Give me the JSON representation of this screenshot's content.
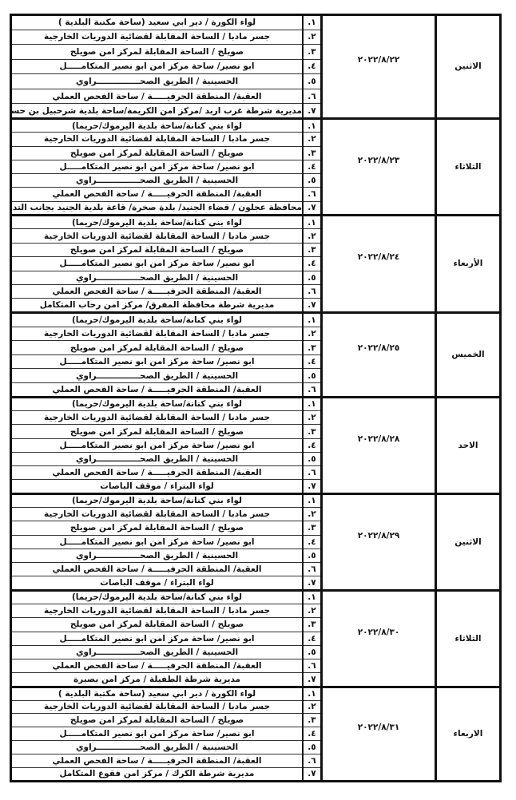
{
  "schedule": [
    {
      "day": "الاثنين",
      "date": "٢٠٢٢/٨/٢٢",
      "locations": [
        "لواء الكورة / دير ابي سعيد (ساحة مكتبة البلدية )",
        "جسر مادبا / الساحة المقابلة لقضائية الدوريات الخارجية",
        "صويلح / الساحة المقابلة لمركز امن صويلح",
        "ابو نصير/ ساحة مركز امن ابو نصير المتكامـــــل",
        "الحسينية / الطريق الصحـــــــــــــــراوي",
        "العقبة/ المنطقة الحرفيـــــة / ساحة الفحص العملي",
        "مديرية شرطة غرب اربد /مركز امن الكريمة/ساحة بلدية شرحبيل بن حسنة"
      ]
    },
    {
      "day": "الثلاثاء",
      "date": "٢٠٢٢/٨/٢٣",
      "locations": [
        "لواء بني كنانة/ساحة بلدية اليرموك/حريما)",
        "جسر مادبا / الساحة المقابلة لقضائية الدوريات الخارجية",
        "صويلح / الساحة المقابلة لمركز امن صويلح",
        "ابو نصير/ ساحة مركز امن ابو نصير المتكامـــــل",
        "الحسينية / الطريق الصحـــــــــــــــراوي",
        "العقبة/ المنطقة الحرفيـــــة / ساحة الفحص العملي",
        "محافظة عجلون / قضاء الجنيد/ بلدة صخرة/ قاعة بلدية الجنيد بجانب التدريب المهني"
      ]
    },
    {
      "day": "الأربعاء",
      "date": "٢٠٢٢/٨/٢٤",
      "locations": [
        "لواء بني كنانة/ساحة بلدية اليرموك/حريما)",
        "جسر مادبا / الساحة المقابلة لقضائية الدوريات الخارجية",
        "صويلح / الساحة المقابلة لمركز امن صويلح",
        "ابو نصير/ ساحة مركز امن ابو نصير المتكامـــــل",
        "الحسينية / الطريق الصحـــــــــــــــراوي",
        "العقبة/ المنطقة الحرفيـــــة / ساحة الفحص العملي",
        "مديرية شرطة محافظة المفرق/ مركز امن رحاب المتكامل"
      ]
    },
    {
      "day": "الخميس",
      "date": "٢٠٢٢/٨/٢٥",
      "locations": [
        "لواء بني كنانة/ساحة بلدية اليرموك/حريما)",
        "جسر مادبا / الساحة المقابلة لقضائية الدوريات الخارجية",
        "صويلح / الساحة المقابلة لمركز امن صويلح",
        "ابو نصير/ ساحة مركز امن ابو نصير المتكامـــــل",
        "الحسينية / الطريق الصحـــــــــــــــراوي",
        "العقبة/ المنطقة الحرفيـــــة / ساحة الفحص العملي"
      ]
    },
    {
      "day": "الاحد",
      "date": "٢٠٢٢/٨/٢٨",
      "locations": [
        "لواء بني كنانة/ساحة بلدية اليرموك/حريما)",
        "جسر مادبا / الساحة المقابلة لقضائية الدوريات الخارجية",
        "صويلح / الساحة المقابلة لمركز امن صويلح",
        "ابو نصير/ ساحة مركز امن ابو نصير المتكامـــــل",
        "الحسينية / الطريق الصحـــــــــــــــراوي",
        "العقبة/ المنطقة الحرفيـــــة / ساحة الفحص العملي",
        "لواء البتراء / موقف الباصات"
      ]
    },
    {
      "day": "الاثنين",
      "date": "٢٠٢٢/٨/٢٩",
      "locations": [
        "لواء بني كنانة/ساحة بلدية اليرموك/حريما)",
        "جسر مادبا / الساحة المقابلة لقضائية الدوريات الخارجية",
        "صويلح / الساحة المقابلة لمركز امن صويلح",
        "ابو نصير/ ساحة مركز امن ابو نصير المتكامـــــل",
        "الحسينية / الطريق الصحـــــــــــــــراوي",
        "العقبة/ المنطقة الحرفيـــــة / ساحة الفحص العملي",
        "لواء البتراء / موقف الباصات"
      ]
    },
    {
      "day": "الثلاثاء",
      "date": "٢٠٢٢/٨/٣٠",
      "locations": [
        "لواء بني كنانة/ساحة بلدية اليرموك/حريما)",
        "جسر مادبا / الساحة المقابلة لقضائية الدوريات الخارجية",
        "صويلح / الساحة المقابلة لمركز امن صويلح",
        "ابو نصير/ ساحة مركز امن ابو نصير المتكامـــــل",
        "الحسينية / الطريق الصحـــــــــــــــراوي",
        "العقبة/ المنطقة الحرفيـــــة / ساحة الفحص العملي",
        "مديرية شرطة الطفيلة / مركز امن بصيرة"
      ]
    },
    {
      "day": "الاربعاء",
      "date": "٢٠٢٢/٨/٣١",
      "locations": [
        "لواء الكورة / دير ابي سعيد (ساحة مكتبة البلدية )",
        "جسر مادبا / الساحة المقابلة لقضائية الدوريات الخارجية",
        "صويلح / الساحة المقابلة لمركز امن صويلح",
        "ابو نصير/ ساحة مركز امن ابو نصير المتكامـــــل",
        "الحسينية / الطريق الصحـــــــــــــــراوي",
        "العقبة/ المنطقة الحرفيـــــة / ساحة الفحص العملي",
        "مديرية شرطة الكرك / مركز امن فقوع المتكامل"
      ]
    }
  ],
  "row_numbers": [
    "١.",
    "٢.",
    "٣.",
    "٤.",
    "٥.",
    "٦.",
    "٧."
  ]
}
